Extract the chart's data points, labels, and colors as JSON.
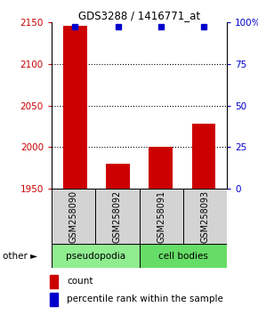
{
  "title": "GDS3288 / 1416771_at",
  "samples": [
    "GSM258090",
    "GSM258092",
    "GSM258091",
    "GSM258093"
  ],
  "bar_values": [
    2145,
    1980,
    2001,
    2028
  ],
  "percentile_values": [
    97,
    97,
    97,
    97
  ],
  "bar_color": "#cc0000",
  "dot_color": "#0000cc",
  "ylim_left": [
    1950,
    2150
  ],
  "ylim_right": [
    0,
    100
  ],
  "yticks_left": [
    1950,
    2000,
    2050,
    2100,
    2150
  ],
  "yticks_right": [
    0,
    25,
    50,
    75,
    100
  ],
  "ytick_labels_right": [
    "0",
    "25",
    "50",
    "75",
    "100%"
  ],
  "groups": [
    {
      "label": "pseudopodia",
      "color": "#90ee90"
    },
    {
      "label": "cell bodies",
      "color": "#66dd66"
    }
  ],
  "other_label": "other",
  "legend_count_label": "count",
  "legend_pct_label": "percentile rank within the sample",
  "bar_width": 0.55,
  "x_positions": [
    0,
    1,
    2,
    3
  ],
  "background_color": "#ffffff",
  "left_tick_color": "#cc0000",
  "right_tick_color": "#0000cc",
  "sample_box_color": "#d3d3d3",
  "grid_linestyle": "dotted",
  "grid_linewidth": 0.8
}
